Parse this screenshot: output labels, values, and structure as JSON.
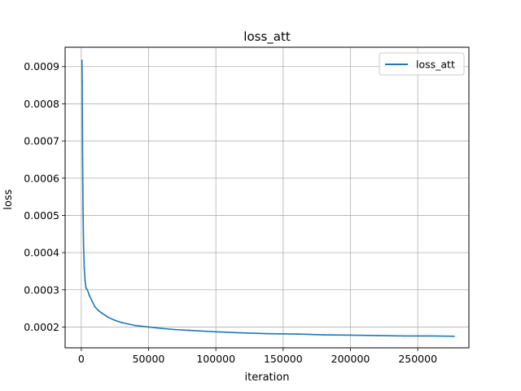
{
  "chart_data": {
    "type": "line",
    "title": "loss_att",
    "xlabel": "iteration",
    "ylabel": "loss",
    "xlim": [
      -12000,
      288000
    ],
    "ylim": [
      0.000144,
      0.000952
    ],
    "x_ticks": [
      0,
      50000,
      100000,
      150000,
      200000,
      250000
    ],
    "x_tick_labels": [
      "0",
      "50000",
      "100000",
      "150000",
      "200000",
      "250000"
    ],
    "y_ticks": [
      0.0002,
      0.0003,
      0.0004,
      0.0005,
      0.0006,
      0.0007,
      0.0008,
      0.0009
    ],
    "y_tick_labels": [
      "0.0002",
      "0.0003",
      "0.0004",
      "0.0005",
      "0.0006",
      "0.0007",
      "0.0008",
      "0.0009"
    ],
    "grid": true,
    "legend_position": "top-right",
    "series": [
      {
        "name": "loss_att",
        "color": "#1f77b4",
        "x": [
          500,
          700,
          1000,
          1300,
          1700,
          2200,
          2800,
          3500,
          4500,
          6000,
          8000,
          10000,
          12500,
          15000,
          20000,
          25000,
          30000,
          35000,
          40000,
          50000,
          60000,
          70000,
          80000,
          100000,
          120000,
          140000,
          160000,
          180000,
          200000,
          220000,
          240000,
          260000,
          277000
        ],
        "y": [
          0.000917,
          0.00086,
          0.00065,
          0.00052,
          0.00042,
          0.00036,
          0.000325,
          0.000305,
          0.0003,
          0.000285,
          0.00027,
          0.000255,
          0.000245,
          0.000238,
          0.000226,
          0.000218,
          0.000212,
          0.000208,
          0.000204,
          0.0002,
          0.000196,
          0.000193,
          0.000191,
          0.000187,
          0.000184,
          0.000182,
          0.000181,
          0.000179,
          0.000178,
          0.000177,
          0.000176,
          0.000176,
          0.000175
        ]
      }
    ]
  }
}
